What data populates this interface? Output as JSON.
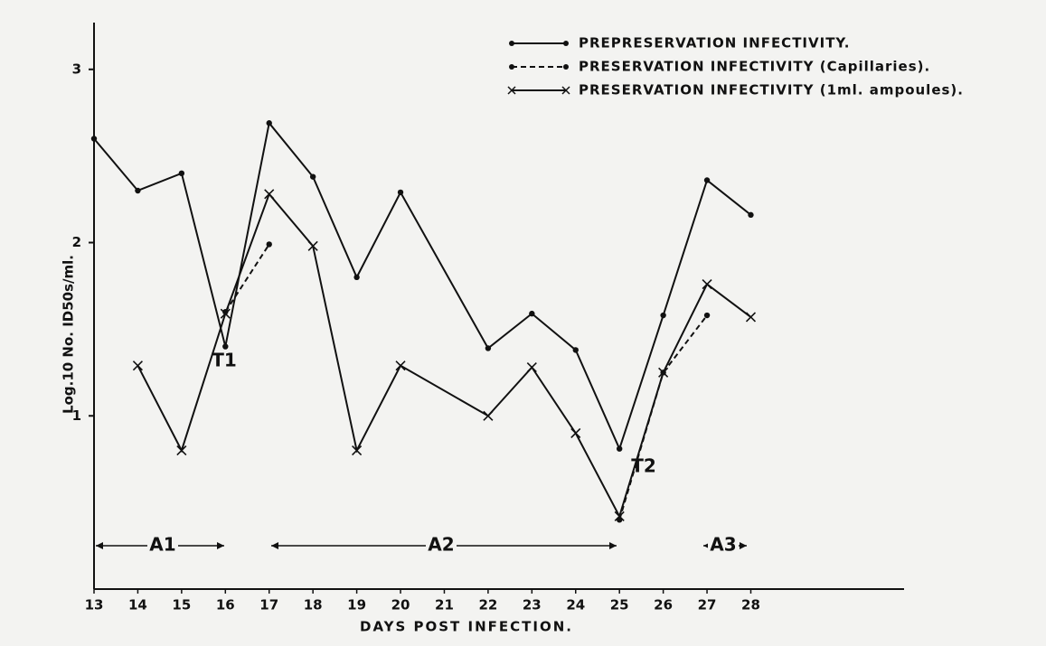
{
  "chart_data": {
    "type": "line",
    "y_label": "Log.10 No. ID50s/ml.",
    "x_label": "DAYS POST INFECTION.",
    "xlim": [
      13,
      31.5
    ],
    "xticks": [
      13,
      14,
      15,
      16,
      17,
      18,
      19,
      20,
      21,
      22,
      23,
      24,
      25,
      26,
      27,
      28
    ],
    "ylim": [
      0,
      3.27
    ],
    "yticks": [
      1,
      2,
      3
    ],
    "series": [
      {
        "name": "PREPRESERVATION INFECTIVITY.",
        "color": "#111111",
        "line_style": "solid",
        "marker": "dot",
        "x": [
          13,
          14,
          15,
          16,
          17,
          18,
          19,
          20,
          22,
          23,
          24,
          25,
          26,
          27,
          28
        ],
        "values": [
          2.6,
          2.3,
          2.4,
          1.4,
          2.69,
          2.38,
          1.8,
          2.29,
          1.39,
          1.59,
          1.38,
          0.81,
          1.58,
          2.36,
          2.16
        ]
      },
      {
        "name": "PRESERVATION INFECTIVITY (Capillaries).",
        "color": "#111111",
        "line_style": "dashed",
        "marker": "dot",
        "x": [
          16,
          17,
          null,
          25,
          26,
          27
        ],
        "values": [
          1.6,
          1.99,
          null,
          0.4,
          1.25,
          1.58
        ]
      },
      {
        "name": "PRESERVATION INFECTIVITY (1ml. ampoules).",
        "color": "#111111",
        "line_style": "solid",
        "marker": "x",
        "x": [
          14,
          15,
          16,
          17,
          18,
          19,
          20,
          22,
          23,
          24,
          25,
          26,
          27,
          28
        ],
        "values": [
          1.29,
          0.8,
          1.59,
          2.28,
          1.98,
          0.8,
          1.29,
          1.0,
          1.28,
          0.9,
          0.42,
          1.25,
          1.76,
          1.57
        ]
      }
    ],
    "annotations": [
      "T1",
      "T2",
      "A1",
      "A2",
      "A3"
    ],
    "legend_position": "upper right"
  }
}
